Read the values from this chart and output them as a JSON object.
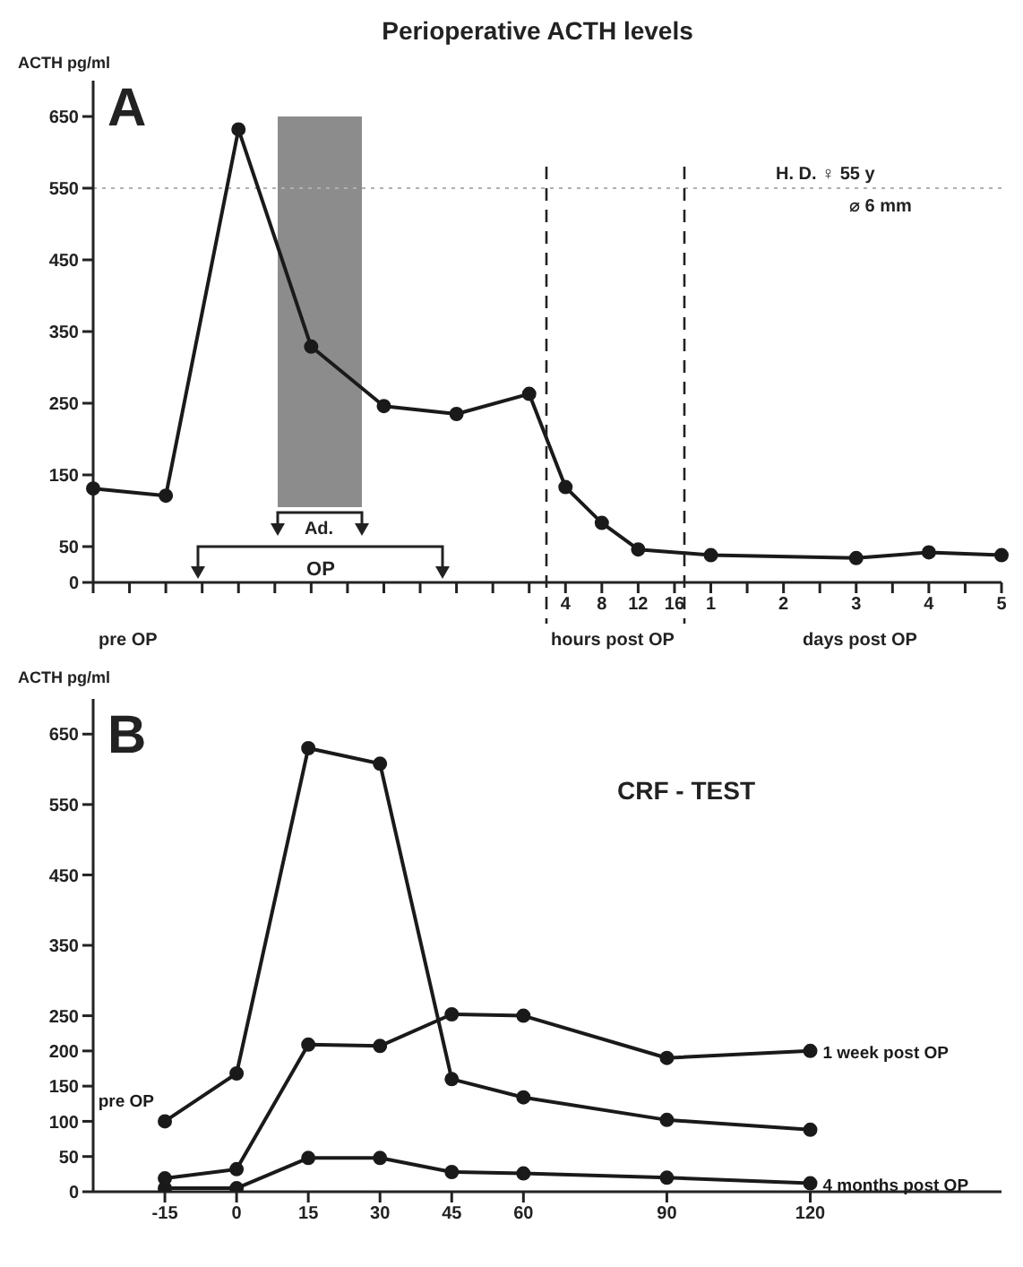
{
  "chart_data": [
    {
      "type": "line",
      "title": "Perioperative ACTH levels",
      "ylabel": "ACTH pg/ml",
      "categories": [
        null,
        null,
        null,
        null,
        null,
        null,
        null,
        null,
        null,
        null,
        null,
        null,
        null,
        "4",
        "8",
        "12",
        "16",
        "1",
        null,
        "2",
        null,
        "3",
        null,
        "4",
        null,
        "5"
      ],
      "series": [
        {
          "color": "#1a1a1a",
          "values": [
            131,
            null,
            121,
            null,
            632,
            null,
            329,
            null,
            246,
            null,
            235,
            null,
            263,
            133,
            83,
            46,
            null,
            38,
            null,
            null,
            null,
            34,
            null,
            42,
            null,
            38
          ]
        }
      ],
      "ylim": [
        0,
        700
      ],
      "yticks": [
        0,
        50,
        150,
        250,
        350,
        450,
        550,
        650
      ],
      "ref_lines": [
        {
          "axis": "y",
          "value": 550,
          "line_style": "dotted",
          "color": "#b0b0b0"
        }
      ],
      "annotations": [
        "A",
        "H. D. ♀ 55 y",
        "⌀ 6 mm",
        "OP",
        "pre OP",
        "hours post OP",
        "days post OP",
        "Ad."
      ],
      "marker": "circle"
    },
    {
      "type": "line",
      "title": "CRF - TEST",
      "ylabel": "ACTH pg/ml",
      "x": [
        -15,
        0,
        15,
        30,
        45,
        60,
        90,
        120
      ],
      "series": [
        {
          "name": "pre OP",
          "color": "#1a1a1a",
          "values": [
            100,
            168,
            630,
            608,
            160,
            134,
            102,
            88
          ]
        },
        {
          "name": "1 week post OP",
          "color": "#1a1a1a",
          "values": [
            19,
            32,
            209,
            207,
            252,
            250,
            190,
            200
          ]
        },
        {
          "name": "4 months post OP",
          "color": "#1a1a1a",
          "values": [
            5,
            5,
            48,
            48,
            28,
            26,
            20,
            12
          ]
        }
      ],
      "xlim": [
        -30,
        160
      ],
      "xticks": [
        -15,
        0,
        15,
        30,
        45,
        60,
        90,
        120
      ],
      "ylim": [
        0,
        700
      ],
      "yticks": [
        0,
        50,
        100,
        150,
        200,
        250,
        350,
        450,
        550,
        650
      ],
      "annotations": [
        "B"
      ],
      "marker": "circle"
    }
  ]
}
